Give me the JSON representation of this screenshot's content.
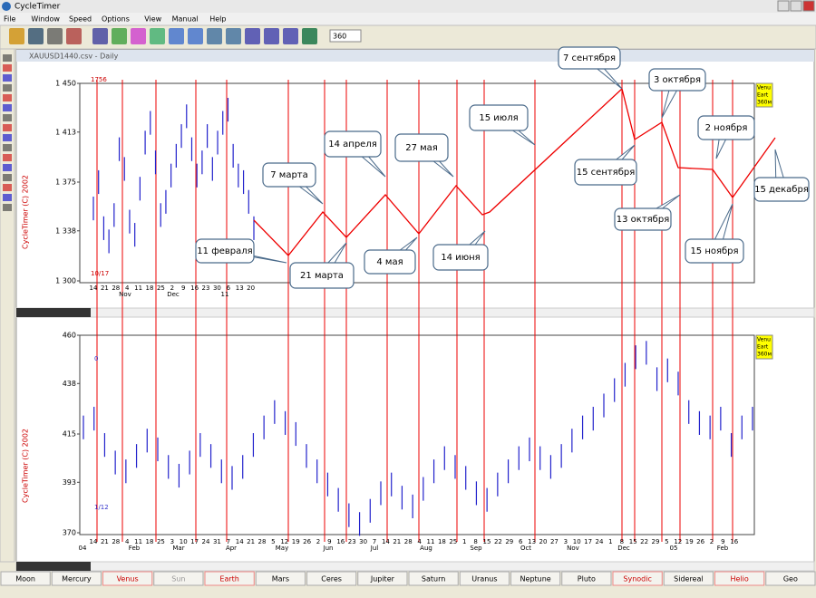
{
  "window_title": "CycleTimer",
  "menu": [
    "File",
    "Window",
    "Speed",
    "Options",
    "View",
    "Manual",
    "Help"
  ],
  "toolbar_input": "360",
  "document_title": "XAUUSD1440.csv - Daily",
  "copyright": "CycleTimer (C) 2002",
  "charts": [
    {
      "ylim": [
        1300,
        1450
      ],
      "yticks": [
        {
          "value": 1300,
          "label": "1 300"
        },
        {
          "value": 1338,
          "label": "1 338"
        },
        {
          "value": 1375,
          "label": "1 375"
        },
        {
          "value": 1413,
          "label": "1 413"
        },
        {
          "value": 1450,
          "label": "1 450"
        }
      ],
      "x_labels": [
        "14",
        "21",
        "28",
        "4",
        "11",
        "18",
        "25",
        "2",
        "9",
        "16",
        "23",
        "30",
        "6",
        "13",
        "20"
      ],
      "month_labels": [
        "Nov",
        "Dec",
        "11"
      ],
      "markers": [
        "1756",
        "10/17"
      ],
      "legend": [
        "Venu",
        "Eart",
        "360м"
      ],
      "values": [
        1355,
        1375,
        1340,
        1330,
        1350,
        1400,
        1385,
        1345,
        1335,
        1370,
        1405,
        1420,
        1390,
        1350,
        1360,
        1380,
        1395,
        1410,
        1425,
        1400,
        1380,
        1390,
        1410,
        1385,
        1405,
        1420,
        1430,
        1395,
        1380,
        1375,
        1360,
        1340
      ]
    },
    {
      "ylim": [
        370,
        460
      ],
      "yticks": [
        370,
        393,
        415,
        438,
        460
      ],
      "x_labels": [
        "14",
        "21",
        "28",
        "4",
        "11",
        "18",
        "25",
        "3",
        "10",
        "17",
        "24",
        "31",
        "7",
        "14",
        "21",
        "28",
        "5",
        "12",
        "19",
        "26",
        "2",
        "9",
        "16",
        "23",
        "30",
        "7",
        "14",
        "21",
        "28",
        "4",
        "11",
        "18",
        "25",
        "1",
        "8",
        "15",
        "22",
        "29",
        "6",
        "13",
        "20",
        "27",
        "3",
        "10",
        "17",
        "24",
        "1",
        "8",
        "15",
        "22",
        "29",
        "5",
        "12",
        "19",
        "26",
        "2",
        "9",
        "16"
      ],
      "month_labels": [
        "04",
        "Feb",
        "Mar",
        "Apr",
        "May",
        "Jun",
        "Jul",
        "Aug",
        "Sep",
        "Oct",
        "Nov",
        "Dec",
        "05",
        "Feb"
      ],
      "markers": [
        "0",
        "1/12"
      ],
      "legend": [
        "Venu",
        "Eart",
        "360м"
      ],
      "values": [
        418,
        422,
        410,
        402,
        398,
        405,
        412,
        408,
        400,
        396,
        402,
        410,
        405,
        398,
        395,
        400,
        410,
        418,
        425,
        420,
        415,
        405,
        398,
        392,
        385,
        378,
        374,
        380,
        388,
        392,
        386,
        382,
        390,
        398,
        404,
        400,
        395,
        388,
        385,
        392,
        398,
        404,
        408,
        404,
        400,
        405,
        412,
        418,
        422,
        428,
        435,
        442,
        450,
        452,
        440,
        444,
        438,
        425,
        420,
        418,
        422,
        410,
        418,
        422
      ]
    }
  ],
  "callouts": [
    "7 сентября",
    "3 октября",
    "15 июля",
    "14 апреля",
    "27 мая",
    "2 ноября",
    "7 марта",
    "15 сентября",
    "15 декабря",
    "13 октября",
    "11 февраля",
    "4 мая",
    "21 марта",
    "14 июня",
    "15 ноября"
  ],
  "tabs": [
    "Moon",
    "Mercury",
    "Venus",
    "Sun",
    "Earth",
    "Mars",
    "Ceres",
    "Jupiter",
    "Saturn",
    "Uranus",
    "Neptune",
    "Pluto",
    "Synodic",
    "Sidereal",
    "Helio",
    "Geo"
  ]
}
